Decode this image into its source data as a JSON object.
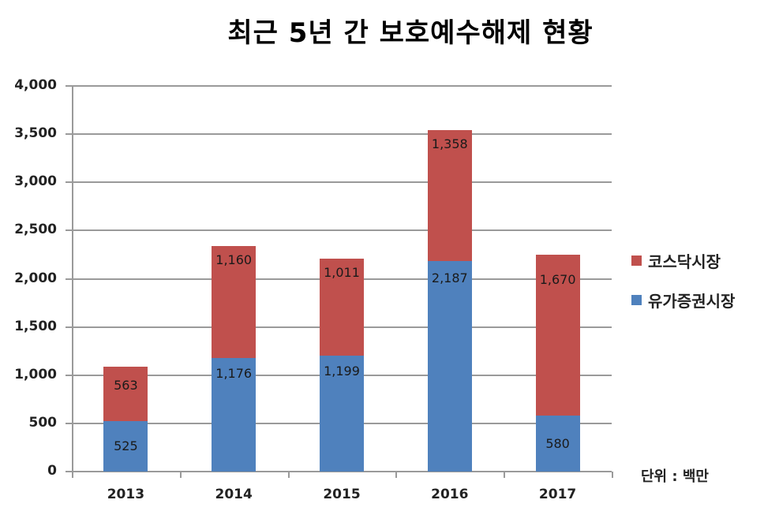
{
  "title": "최근 5년 간 보호예수해제 현황",
  "unit_note": "단위 : 백만",
  "colors": {
    "kosdaq": "#c0504d",
    "securities": "#4f81bd"
  },
  "legend": [
    {
      "name": "코스닥시장",
      "color": "#c0504d"
    },
    {
      "name": "유가증권시장",
      "color": "#4f81bd"
    }
  ],
  "y_ticks": [
    "4,000",
    "3,500",
    "3,000",
    "2,500",
    "2,000",
    "1,500",
    "1,000",
    "500",
    "0"
  ],
  "bars": [
    {
      "year": "2013",
      "securities": 525,
      "securities_label": "525",
      "kosdaq": 563,
      "kosdaq_label": "563"
    },
    {
      "year": "2014",
      "securities": 1176,
      "securities_label": "1,176",
      "kosdaq": 1160,
      "kosdaq_label": "1,160"
    },
    {
      "year": "2015",
      "securities": 1199,
      "securities_label": "1,199",
      "kosdaq": 1011,
      "kosdaq_label": "1,011"
    },
    {
      "year": "2016",
      "securities": 2187,
      "securities_label": "2,187",
      "kosdaq": 1358,
      "kosdaq_label": "1,358"
    },
    {
      "year": "2017",
      "securities": 580,
      "securities_label": "580",
      "kosdaq": 1670,
      "kosdaq_label": "1,670"
    }
  ],
  "chart_data": {
    "type": "bar",
    "stacked": true,
    "title": "최근 5년 간 보호예수해제 현황",
    "categories": [
      "2013",
      "2014",
      "2015",
      "2016",
      "2017"
    ],
    "series": [
      {
        "name": "유가증권시장",
        "color": "#4f81bd",
        "values": [
          525,
          1176,
          1199,
          2187,
          580
        ]
      },
      {
        "name": "코스닥시장",
        "color": "#c0504d",
        "values": [
          563,
          1160,
          1011,
          1358,
          1670
        ]
      }
    ],
    "xlabel": "",
    "ylabel": "",
    "ylim": [
      0,
      4000
    ],
    "yticks": [
      0,
      500,
      1000,
      1500,
      2000,
      2500,
      3000,
      3500,
      4000
    ],
    "grid": true,
    "legend_position": "right",
    "annotations": [
      "단위 : 백만"
    ]
  }
}
